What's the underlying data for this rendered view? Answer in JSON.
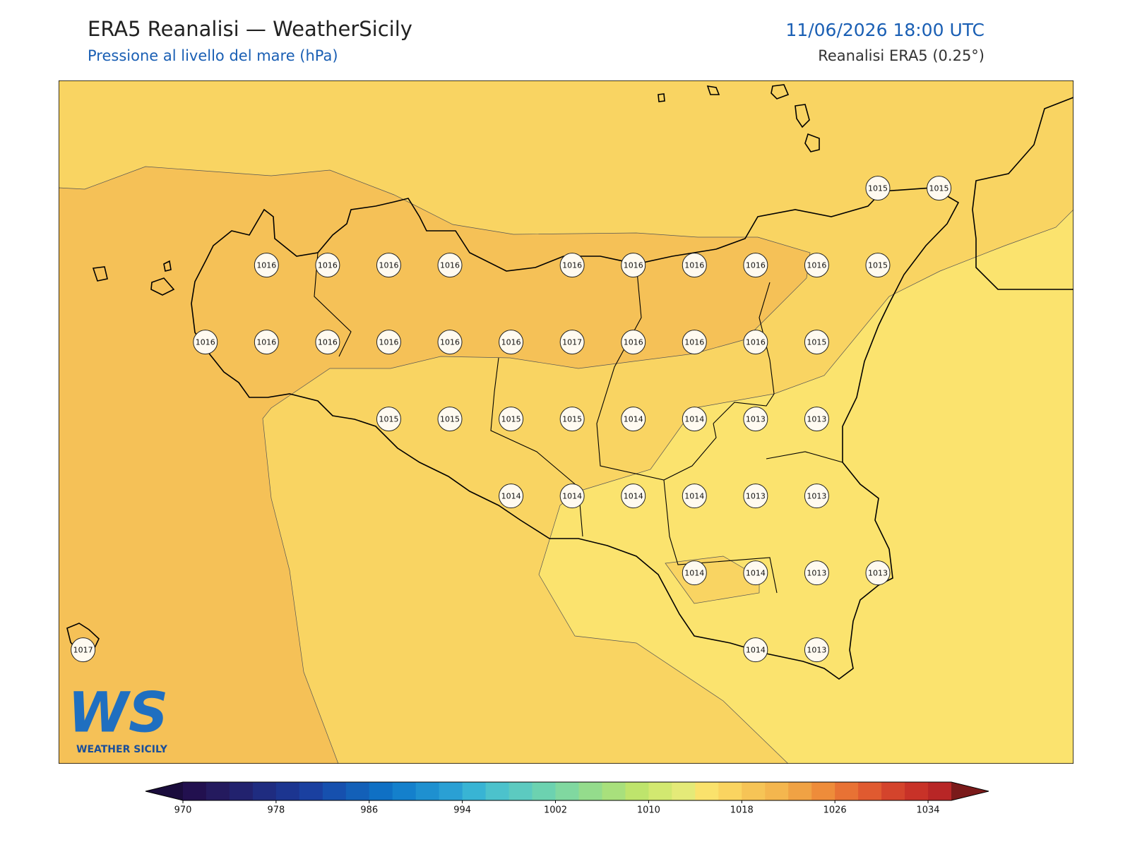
{
  "header": {
    "title": "ERA5 Reanalisi — WeatherSicily",
    "subtitle": "Pressione al livello del mare (hPa)",
    "date": "11/06/2026 18:00 UTC",
    "source": "Reanalisi ERA5 (0.25°)"
  },
  "map": {
    "lon_range": [
      11.9,
      16.05
    ],
    "lat_range": [
      36.38,
      38.6
    ],
    "stations": [
      {
        "lon": 15.25,
        "lat": 38.25,
        "value": 1015
      },
      {
        "lon": 15.5,
        "lat": 38.25,
        "value": 1015
      },
      {
        "lon": 12.75,
        "lat": 38.0,
        "value": 1016
      },
      {
        "lon": 13.0,
        "lat": 38.0,
        "value": 1016
      },
      {
        "lon": 13.25,
        "lat": 38.0,
        "value": 1016
      },
      {
        "lon": 13.5,
        "lat": 38.0,
        "value": 1016
      },
      {
        "lon": 14.0,
        "lat": 38.0,
        "value": 1016
      },
      {
        "lon": 14.25,
        "lat": 38.0,
        "value": 1016
      },
      {
        "lon": 14.5,
        "lat": 38.0,
        "value": 1016
      },
      {
        "lon": 14.75,
        "lat": 38.0,
        "value": 1016
      },
      {
        "lon": 15.0,
        "lat": 38.0,
        "value": 1016
      },
      {
        "lon": 15.25,
        "lat": 38.0,
        "value": 1015
      },
      {
        "lon": 12.5,
        "lat": 37.75,
        "value": 1016
      },
      {
        "lon": 12.75,
        "lat": 37.75,
        "value": 1016
      },
      {
        "lon": 13.0,
        "lat": 37.75,
        "value": 1016
      },
      {
        "lon": 13.25,
        "lat": 37.75,
        "value": 1016
      },
      {
        "lon": 13.5,
        "lat": 37.75,
        "value": 1016
      },
      {
        "lon": 13.75,
        "lat": 37.75,
        "value": 1016
      },
      {
        "lon": 14.0,
        "lat": 37.75,
        "value": 1017
      },
      {
        "lon": 14.25,
        "lat": 37.75,
        "value": 1016
      },
      {
        "lon": 14.5,
        "lat": 37.75,
        "value": 1016
      },
      {
        "lon": 14.75,
        "lat": 37.75,
        "value": 1016
      },
      {
        "lon": 15.0,
        "lat": 37.75,
        "value": 1015
      },
      {
        "lon": 13.25,
        "lat": 37.5,
        "value": 1015
      },
      {
        "lon": 13.5,
        "lat": 37.5,
        "value": 1015
      },
      {
        "lon": 13.75,
        "lat": 37.5,
        "value": 1015
      },
      {
        "lon": 14.0,
        "lat": 37.5,
        "value": 1015
      },
      {
        "lon": 14.25,
        "lat": 37.5,
        "value": 1014
      },
      {
        "lon": 14.5,
        "lat": 37.5,
        "value": 1014
      },
      {
        "lon": 14.75,
        "lat": 37.5,
        "value": 1013
      },
      {
        "lon": 15.0,
        "lat": 37.5,
        "value": 1013
      },
      {
        "lon": 13.75,
        "lat": 37.25,
        "value": 1014
      },
      {
        "lon": 14.0,
        "lat": 37.25,
        "value": 1014
      },
      {
        "lon": 14.25,
        "lat": 37.25,
        "value": 1014
      },
      {
        "lon": 14.5,
        "lat": 37.25,
        "value": 1014
      },
      {
        "lon": 14.75,
        "lat": 37.25,
        "value": 1013
      },
      {
        "lon": 15.0,
        "lat": 37.25,
        "value": 1013
      },
      {
        "lon": 14.5,
        "lat": 37.0,
        "value": 1014
      },
      {
        "lon": 14.75,
        "lat": 37.0,
        "value": 1014
      },
      {
        "lon": 15.0,
        "lat": 37.0,
        "value": 1013
      },
      {
        "lon": 15.25,
        "lat": 37.0,
        "value": 1013
      },
      {
        "lon": 12.0,
        "lat": 36.75,
        "value": 1017
      },
      {
        "lon": 14.75,
        "lat": 36.75,
        "value": 1014
      },
      {
        "lon": 15.0,
        "lat": 36.75,
        "value": 1013
      }
    ]
  },
  "colorbar": {
    "lim": [
      970,
      1036
    ],
    "ticks": [
      970,
      978,
      986,
      994,
      1002,
      1010,
      1018,
      1026,
      1034
    ],
    "colors": [
      "#22104f",
      "#241a5e",
      "#22226e",
      "#1f2c80",
      "#1c3590",
      "#1a40a0",
      "#1650ae",
      "#1360b8",
      "#0f70c4",
      "#1480cc",
      "#1e90d0",
      "#2aa0d4",
      "#38b4d4",
      "#4cc2cc",
      "#5ccac0",
      "#6cd2b0",
      "#80d8a0",
      "#94dc8c",
      "#a8e07c",
      "#bee46c",
      "#d2e870",
      "#e4ea78",
      "#fae26c",
      "#fad460",
      "#f6c456",
      "#f4b64e",
      "#f0a244",
      "#ee8c3a",
      "#e87234",
      "#e05a30",
      "#d4442c",
      "#c83228",
      "#b82626"
    ],
    "under_color": "#1a0c3c",
    "over_color": "#7a1a1a"
  },
  "logo": {
    "letters": "WS",
    "text": "WEATHER SICILY"
  }
}
